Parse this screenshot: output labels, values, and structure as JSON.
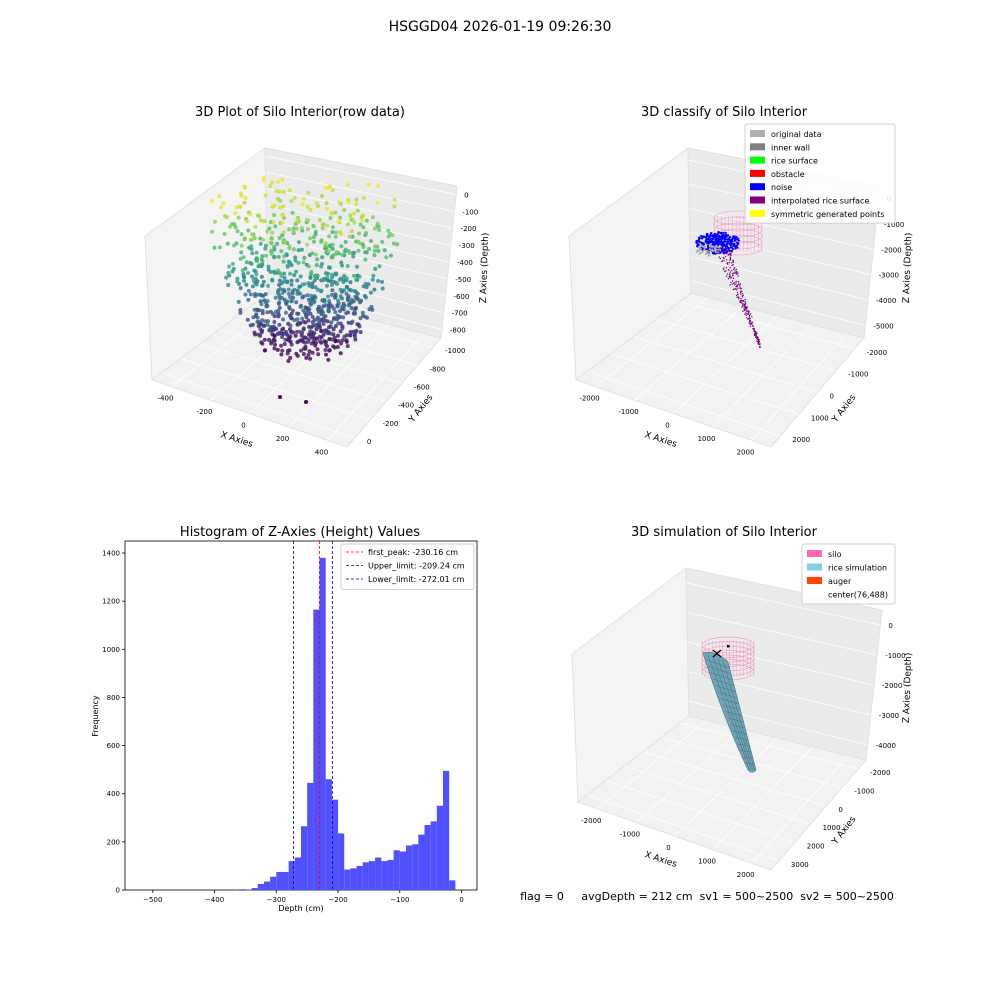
{
  "suptitle": "HSGGD04 2026-01-19 09:26:30",
  "status_text": "flag = 0     avgDepth = 212 cm  sv1 = 500~2500  sv2 = 500~2500",
  "chart_data": [
    {
      "type": "scatter",
      "title": "3D Plot of Silo Interior(row data)",
      "xlabel": "X Axies",
      "ylabel": "Y Axies",
      "zlabel": "Z Axies (Depth)",
      "x_ticks": [
        "-400",
        "-200",
        "0",
        "200",
        "400"
      ],
      "y_ticks": [
        "0",
        "-200",
        "-400",
        "-600",
        "-800",
        "-1000"
      ],
      "z_ticks": [
        "0",
        "-100",
        "-200",
        "-300",
        "-400",
        "-500",
        "-600",
        "-700",
        "-800"
      ],
      "colormap": "viridis"
    },
    {
      "type": "scatter",
      "title": "3D classify of Silo Interior",
      "xlabel": "X Axies",
      "ylabel": "Y Axies",
      "zlabel": "Z Axies (Depth)",
      "x_ticks": [
        "-2000",
        "-1000",
        "0",
        "1000",
        "2000"
      ],
      "y_ticks": [
        "2000",
        "1000",
        "0",
        "-1000",
        "-2000"
      ],
      "z_ticks": [
        "0",
        "-1000",
        "-2000",
        "-3000",
        "-4000",
        "-5000"
      ],
      "legend_position": "top-right",
      "legend": [
        {
          "label": "original data",
          "color": "#b0b0b0"
        },
        {
          "label": "inner wall",
          "color": "#808080"
        },
        {
          "label": "rice surface",
          "color": "#00ff00"
        },
        {
          "label": "obstacle",
          "color": "#ff0000"
        },
        {
          "label": "noise",
          "color": "#0000ff"
        },
        {
          "label": "interpolated rice surface",
          "color": "#800080"
        },
        {
          "label": "symmetric generated points",
          "color": "#ffff00"
        }
      ]
    },
    {
      "type": "bar",
      "title": "Histogram of Z-Axies (Height) Values",
      "xlabel": "Depth (cm)",
      "ylabel": "Frequency",
      "xlim": [
        -545,
        25
      ],
      "ylim": [
        0,
        1450
      ],
      "x_ticks": [
        -500,
        -400,
        -300,
        -200,
        -100,
        0
      ],
      "y_ticks": [
        0,
        200,
        400,
        600,
        800,
        1000,
        1200,
        1400
      ],
      "bin_width": 10,
      "bins": [
        [
          -380,
          0
        ],
        [
          -370,
          1
        ],
        [
          -360,
          3
        ],
        [
          -350,
          2
        ],
        [
          -340,
          8
        ],
        [
          -330,
          25
        ],
        [
          -320,
          35
        ],
        [
          -310,
          55
        ],
        [
          -300,
          75
        ],
        [
          -290,
          75
        ],
        [
          -280,
          120
        ],
        [
          -270,
          135
        ],
        [
          -260,
          265
        ],
        [
          -250,
          445
        ],
        [
          -240,
          1165
        ],
        [
          -230,
          1380
        ],
        [
          -220,
          460
        ],
        [
          -210,
          375
        ],
        [
          -200,
          235
        ],
        [
          -190,
          85
        ],
        [
          -180,
          90
        ],
        [
          -170,
          100
        ],
        [
          -160,
          115
        ],
        [
          -150,
          120
        ],
        [
          -140,
          135
        ],
        [
          -130,
          120
        ],
        [
          -120,
          125
        ],
        [
          -110,
          165
        ],
        [
          -100,
          160
        ],
        [
          -90,
          185
        ],
        [
          -80,
          190
        ],
        [
          -70,
          230
        ],
        [
          -60,
          270
        ],
        [
          -50,
          285
        ],
        [
          -40,
          350
        ],
        [
          -30,
          495
        ],
        [
          -20,
          40
        ]
      ],
      "bar_color": "#5050ff",
      "lines": [
        {
          "label": "first_peak: -230.16 cm",
          "x": -230.16,
          "color": "#ff0000"
        },
        {
          "label": "Upper_limit: -209.24 cm",
          "x": -209.24,
          "color": "#00008b"
        },
        {
          "label": "Lower_limit: -272.01 cm",
          "x": -272.01,
          "color": "#00008b"
        }
      ],
      "legend_position": "top-right"
    },
    {
      "type": "scatter",
      "title": "3D simulation of Silo Interior",
      "xlabel": "X Axies",
      "ylabel": "Y Axies",
      "zlabel": "Z Axies (Depth)",
      "x_ticks": [
        "-2000",
        "-1000",
        "0",
        "1000",
        "2000"
      ],
      "y_ticks": [
        "3000",
        "2000",
        "1000",
        "0",
        "-1000",
        "-2000"
      ],
      "z_ticks": [
        "0",
        "-1000",
        "-2000",
        "-3000",
        "-4000"
      ],
      "legend_position": "top-right",
      "legend": [
        {
          "label": "silo",
          "color": "#ff69b4"
        },
        {
          "label": "rice simulation",
          "color": "#87ceeb"
        },
        {
          "label": "auger",
          "color": "#ff4500"
        },
        {
          "label": "center(76,488)",
          "color": "#ffffff"
        }
      ]
    }
  ]
}
